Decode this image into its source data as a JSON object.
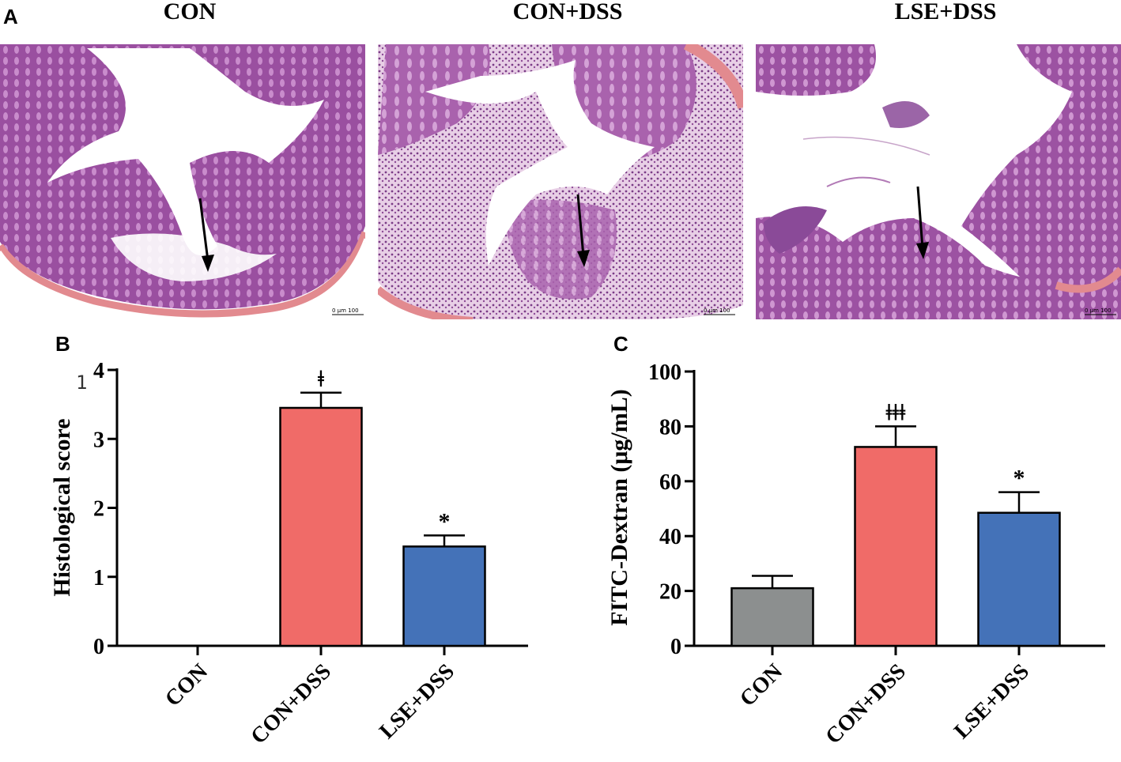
{
  "panel_labels": {
    "a": "A",
    "b": "B",
    "c": "C"
  },
  "histology_images": [
    {
      "title": "CON",
      "scale_bar": "0   μm   100"
    },
    {
      "title": "CON+DSS",
      "scale_bar": "0   μm   100"
    },
    {
      "title": "LSE+DSS",
      "scale_bar": "0   μm   100"
    }
  ],
  "colors": {
    "con": "#8c8f8f",
    "dss": "#f06b68",
    "lse": "#4472b8",
    "tissue": "#a35aa8",
    "tissue_light": "#d9a6d9",
    "muscle": "#e28a8f"
  },
  "chart_data": [
    {
      "type": "bar",
      "panel": "B",
      "categories": [
        "CON",
        "CON+DSS",
        "LSE+DSS"
      ],
      "values": [
        0,
        3.45,
        1.44
      ],
      "errors": [
        0,
        0.22,
        0.16
      ],
      "significance": [
        "",
        "ǂ",
        "*"
      ],
      "title": "",
      "xlabel": "",
      "ylabel": "Histological score",
      "ylim": [
        0,
        4
      ],
      "yticks": [
        "0",
        "1",
        "2",
        "3",
        "4"
      ],
      "stray_label": "1",
      "grid": false
    },
    {
      "type": "bar",
      "panel": "C",
      "categories": [
        "CON",
        "CON+DSS",
        "LSE+DSS"
      ],
      "values": [
        21,
        72.5,
        48.5
      ],
      "errors": [
        4.5,
        7.5,
        7.5
      ],
      "significance": [
        "",
        "ǂǂǂ",
        "*"
      ],
      "title": "",
      "xlabel": "",
      "ylabel": "FITC-Dextran (μg/mL)",
      "ylim": [
        0,
        100
      ],
      "yticks": [
        "0",
        "20",
        "40",
        "60",
        "80",
        "100"
      ],
      "grid": false
    }
  ]
}
